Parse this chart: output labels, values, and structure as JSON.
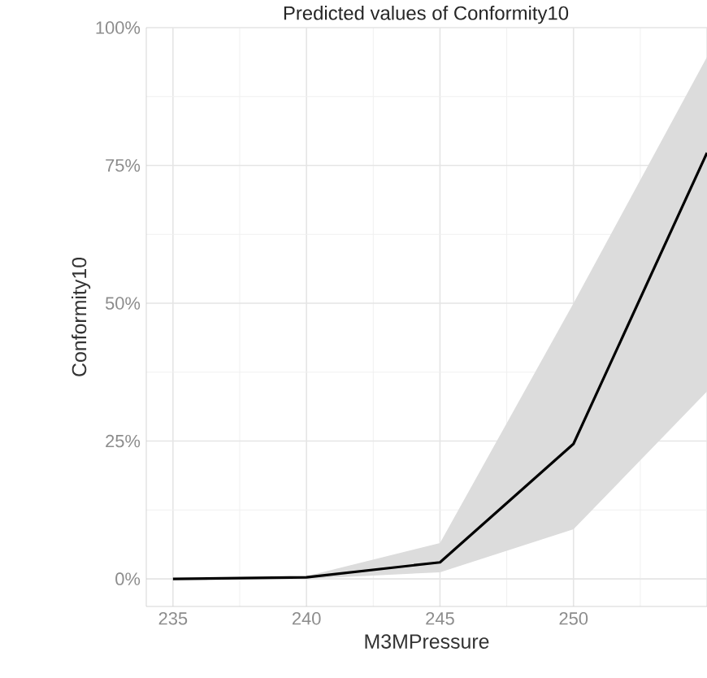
{
  "chart_data": {
    "type": "line",
    "title": "Predicted values of Conformity10",
    "xlabel": "M3MPressure",
    "ylabel": "Conformity10",
    "x": [
      235,
      240,
      245,
      250,
      255
    ],
    "series": [
      {
        "color": "#000000",
        "values": [
          0,
          0.003,
          0.03,
          0.245,
          0.773
        ],
        "lower": [
          0,
          0,
          0.012,
          0.09,
          0.34
        ],
        "upper": [
          0,
          0.005,
          0.065,
          0.5,
          0.947
        ]
      }
    ],
    "xlim": [
      234,
      255
    ],
    "ylim": [
      -0.05,
      1.0
    ],
    "xticks": [
      235,
      240,
      245,
      250,
      {
        "value": 255,
        "label": null
      }
    ],
    "yticks": [
      {
        "value": 0,
        "label": "0%"
      },
      {
        "value": 0.25,
        "label": "25%"
      },
      {
        "value": 0.5,
        "label": "50%"
      },
      {
        "value": 0.75,
        "label": "75%"
      },
      {
        "value": 1.0,
        "label": "100%"
      }
    ],
    "grid": true,
    "marker": "none",
    "line_style": "solid"
  }
}
